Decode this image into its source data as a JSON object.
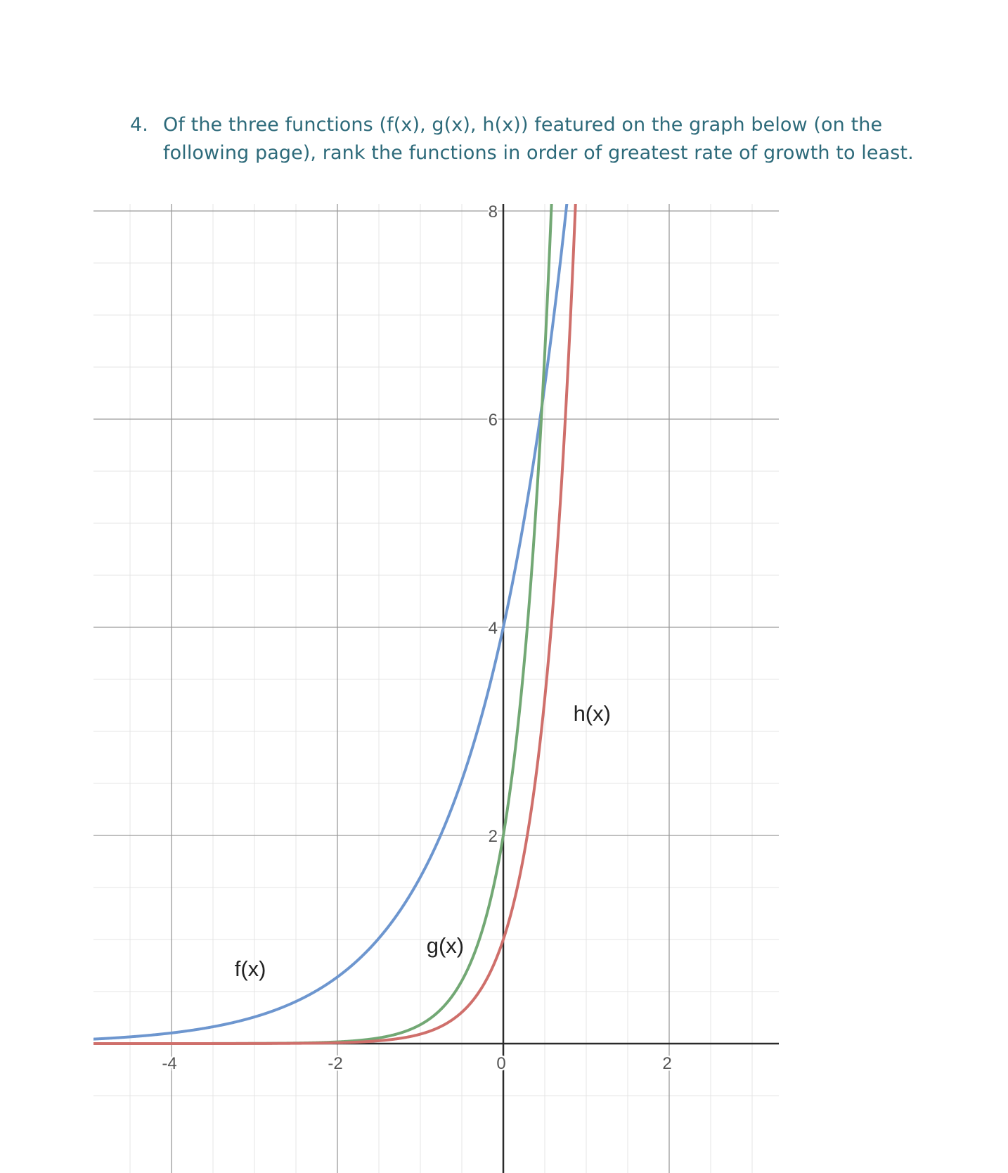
{
  "question": {
    "number": "4.",
    "text": "Of the three functions (f(x), g(x), h(x)) featured on the graph below (on the following page), rank the functions in order of greatest rate of growth to least."
  },
  "chart_data": {
    "type": "line",
    "title": "",
    "xlabel": "",
    "ylabel": "",
    "xlim": [
      -4.95,
      3.3
    ],
    "ylim": [
      -0.55,
      8.15
    ],
    "x_ticks": [
      -4,
      -2,
      0,
      2
    ],
    "x_tick_labels": [
      "-4",
      "-2",
      "0",
      "2"
    ],
    "y_ticks": [
      2,
      4,
      6,
      8
    ],
    "y_tick_labels": [
      "2",
      "4",
      "6",
      "8"
    ],
    "grid": true,
    "minor_grid_step": 0.5,
    "series": [
      {
        "name": "f(x)",
        "color": "#6d96cf",
        "formula": "4 * 2.5^x",
        "x": [
          -4.95,
          -4,
          -3,
          -2,
          -1.5,
          -1,
          -0.5,
          0,
          0.25,
          0.5,
          0.65
        ],
        "y": [
          0.04,
          0.1,
          0.26,
          0.64,
          1.01,
          1.6,
          2.53,
          4.0,
          5.03,
          6.32,
          7.45
        ]
      },
      {
        "name": "g(x)",
        "color": "#72a874",
        "formula": "2 * 11^x",
        "x": [
          -4.95,
          -2,
          -1,
          -0.5,
          0,
          0.25,
          0.4,
          0.5,
          0.55
        ],
        "y": [
          0.0,
          0.02,
          0.18,
          0.6,
          2.0,
          3.64,
          5.2,
          6.63,
          7.5
        ]
      },
      {
        "name": "h(x)",
        "color": "#cf6f6b",
        "formula": "11^x",
        "x": [
          -4.95,
          -2,
          -1,
          -0.5,
          0,
          0.25,
          0.5,
          0.75,
          0.9
        ],
        "y": [
          0.0,
          0.01,
          0.09,
          0.3,
          1.0,
          1.82,
          3.32,
          6.04,
          8.65
        ]
      }
    ],
    "labels": [
      {
        "text": "f(x)",
        "x": -3.05,
        "y": 0.65
      },
      {
        "text": "g(x)",
        "x": -0.7,
        "y": 0.87
      },
      {
        "text": "h(x)",
        "x": 1.07,
        "y": 3.1
      }
    ]
  }
}
